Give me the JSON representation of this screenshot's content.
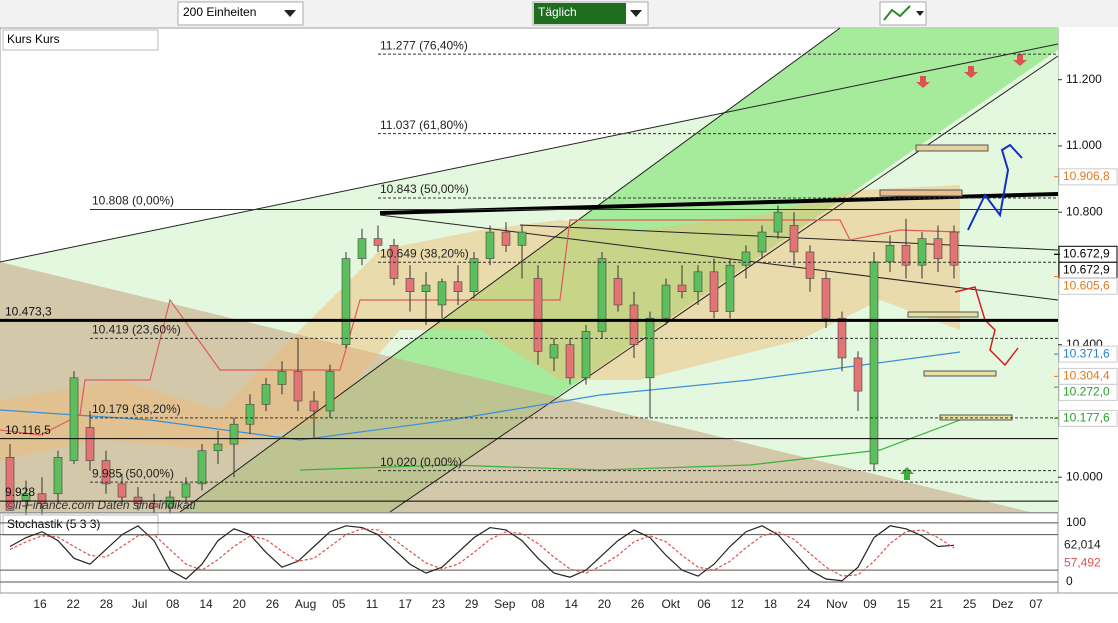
{
  "toolbar": {
    "units": "200 Einheiten",
    "interval": "Täglich"
  },
  "x_axis": {
    "labels": [
      "16",
      "22",
      "28",
      "Jul",
      "08",
      "14",
      "20",
      "26",
      "Aug",
      "05",
      "11",
      "17",
      "23",
      "29",
      "Sep",
      "08",
      "14",
      "20",
      "26",
      "Okt",
      "06",
      "12",
      "18",
      "24",
      "Nov",
      "09",
      "15",
      "21",
      "25",
      "Dez",
      "07"
    ]
  },
  "watermark": "©II-Finance.com  Daten sind indikati",
  "chart_data": [
    {
      "type": "candlestick",
      "title": "Kurs Kurs",
      "ylim": [
        9895,
        11356
      ],
      "yticks": [
        {
          "value": 10000,
          "label": "10.000"
        },
        {
          "value": 10400,
          "label": "10.400"
        },
        {
          "value": 10800,
          "label": "10.800"
        },
        {
          "value": 11000,
          "label": "11.000"
        },
        {
          "value": 11200,
          "label": "11.200"
        }
      ],
      "up_color": "#5cbf5c",
      "down_color": "#e27474",
      "candles": {
        "open": [
          10060,
          9930,
          9950,
          9950,
          10050,
          10150,
          10050,
          9980,
          9940,
          9920,
          9910,
          9940,
          9980,
          10080,
          10100,
          10160,
          10220,
          10280,
          10320,
          10230,
          10200,
          10400,
          10660,
          10720,
          10700,
          10600,
          10560,
          10520,
          10590,
          10560,
          10660,
          10740,
          10700,
          10600,
          10360,
          10400,
          10300,
          10440,
          10600,
          10520,
          10300,
          10480,
          10580,
          10560,
          10620,
          10500,
          10640,
          10680,
          10740,
          10760,
          10680,
          10600,
          10480,
          10360,
          10040,
          10650,
          10700,
          10640,
          10720,
          10740
        ],
        "high": [
          10100,
          9990,
          10000,
          10080,
          10320,
          10200,
          10080,
          10010,
          9970,
          9950,
          9960,
          10000,
          10100,
          10140,
          10180,
          10250,
          10300,
          10350,
          10420,
          10260,
          10340,
          10680,
          10750,
          10760,
          10720,
          10640,
          10620,
          10600,
          10640,
          10680,
          10760,
          10770,
          10760,
          10640,
          10420,
          10420,
          10460,
          10680,
          10640,
          10560,
          10500,
          10600,
          10640,
          10640,
          10660,
          10660,
          10700,
          10760,
          10820,
          10800,
          10700,
          10620,
          10500,
          10380,
          10680,
          10730,
          10780,
          10740,
          10760,
          10760
        ],
        "low": [
          9900,
          9880,
          9880,
          9920,
          10040,
          10020,
          9950,
          9920,
          9900,
          9890,
          9890,
          9920,
          9960,
          10040,
          10000,
          10130,
          10200,
          10250,
          10200,
          10120,
          10180,
          10390,
          10640,
          10680,
          10580,
          10500,
          10460,
          10480,
          10520,
          10540,
          10640,
          10680,
          10600,
          10340,
          10320,
          10280,
          10280,
          10420,
          10500,
          10360,
          10180,
          10460,
          10540,
          10520,
          10480,
          10480,
          10600,
          10660,
          10720,
          10640,
          10560,
          10450,
          10320,
          10200,
          10020,
          10620,
          10600,
          10600,
          10620,
          10600
        ],
        "close": [
          9900,
          9950,
          9920,
          10060,
          10300,
          10050,
          9980,
          9940,
          9920,
          9910,
          9940,
          9980,
          10080,
          10100,
          10160,
          10220,
          10280,
          10320,
          10230,
          10200,
          10320,
          10660,
          10720,
          10700,
          10600,
          10560,
          10580,
          10590,
          10560,
          10660,
          10740,
          10700,
          10740,
          10380,
          10400,
          10300,
          10440,
          10660,
          10520,
          10400,
          10480,
          10580,
          10560,
          10620,
          10500,
          10640,
          10680,
          10740,
          10800,
          10680,
          10600,
          10480,
          10360,
          10260,
          10650,
          10700,
          10640,
          10720,
          10660,
          10640
        ]
      },
      "fib_upper": [
        {
          "value": 11277,
          "label": "11.277 (76,40%)"
        },
        {
          "value": 11037,
          "label": "11.037 (61,80%)"
        },
        {
          "value": 10843,
          "label": "10.843 (50,00%)"
        },
        {
          "value": 10649,
          "label": "10.649 (38,20%)"
        },
        {
          "value": 10020,
          "label": "10.020 (0,00%)"
        }
      ],
      "fib_lower": [
        {
          "value": 10808,
          "label": "10.808 (0,00%)"
        },
        {
          "value": 10419,
          "label": "10.419 (23,60%)"
        },
        {
          "value": 10179,
          "label": "10.179 (38,20%)"
        },
        {
          "value": 9985,
          "label": "9.985 (50,00%)"
        }
      ],
      "left_labels": [
        {
          "value": 10473.3,
          "label": "10.473,3",
          "width": 3
        },
        {
          "value": 10116.5,
          "label": "10.116,5",
          "width": 1
        },
        {
          "value": 9928,
          "label": "9.928",
          "width": 1
        }
      ],
      "right_labels": [
        {
          "value": 10906.8,
          "label": "10.906,8",
          "color": "#e07a20"
        },
        {
          "value": 10672.9,
          "label": "10.672,9",
          "color": "#000000"
        },
        {
          "value": 10672.9,
          "label": "10.672,9",
          "color": "#000000"
        },
        {
          "value": 10605.6,
          "label": "10.605,6",
          "color": "#e07a20"
        },
        {
          "value": 10371.6,
          "label": "10.371,6",
          "color": "#2a7fd0"
        },
        {
          "value": 10304.4,
          "label": "10.304,4",
          "color": "#e07a20"
        },
        {
          "value": 10272.0,
          "label": "10.272,0",
          "color": "#2aa02a"
        },
        {
          "value": 10177.6,
          "label": "10.177,6",
          "color": "#2aa02a"
        }
      ]
    },
    {
      "type": "line",
      "title": "Stochastik (5 3 3)",
      "ylim": [
        -17,
        115
      ],
      "yticks": [
        0,
        100
      ],
      "levels": [
        20,
        80
      ],
      "series": [
        {
          "color": "#222222",
          "end_label": "62,014",
          "values": [
            60,
            75,
            85,
            70,
            40,
            30,
            55,
            80,
            95,
            70,
            20,
            5,
            30,
            70,
            90,
            80,
            50,
            25,
            35,
            60,
            85,
            95,
            92,
            80,
            55,
            30,
            15,
            25,
            50,
            75,
            92,
            88,
            70,
            40,
            15,
            8,
            20,
            45,
            70,
            88,
            75,
            45,
            20,
            10,
            30,
            60,
            85,
            95,
            80,
            50,
            20,
            5,
            2,
            25,
            75,
            95,
            90,
            78,
            60,
            62.014
          ]
        },
        {
          "color": "#e05050",
          "end_label": "57,492",
          "values": [
            55,
            68,
            78,
            76,
            60,
            45,
            42,
            60,
            78,
            80,
            55,
            30,
            20,
            38,
            60,
            78,
            72,
            52,
            35,
            40,
            60,
            80,
            90,
            88,
            72,
            52,
            32,
            22,
            30,
            50,
            72,
            85,
            82,
            65,
            42,
            22,
            15,
            28,
            45,
            68,
            78,
            68,
            45,
            25,
            20,
            35,
            58,
            78,
            85,
            72,
            48,
            25,
            10,
            12,
            35,
            65,
            85,
            88,
            75,
            57.492
          ]
        }
      ]
    }
  ]
}
